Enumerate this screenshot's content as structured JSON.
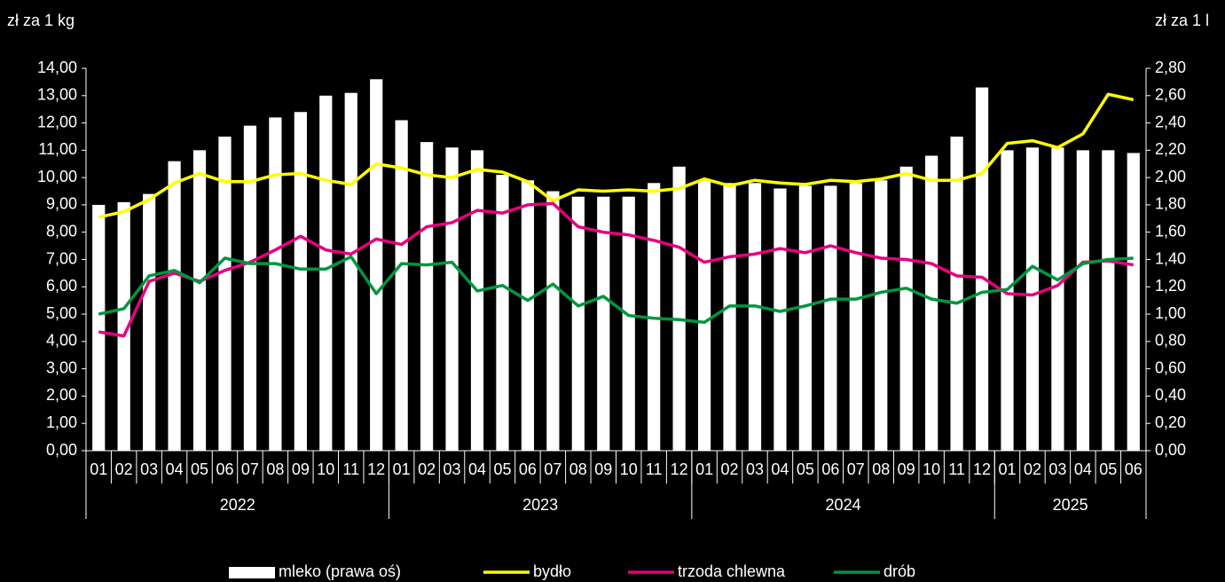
{
  "chart_data": {
    "type": "bar-line",
    "y_label": "zł za 1 kg",
    "y2_label": "zł za 1 l",
    "categories": [
      "01",
      "02",
      "03",
      "04",
      "05",
      "06",
      "07",
      "08",
      "09",
      "10",
      "11",
      "12",
      "01",
      "02",
      "03",
      "04",
      "05",
      "06",
      "07",
      "08",
      "09",
      "10",
      "11",
      "12",
      "01",
      "02",
      "03",
      "04",
      "05",
      "06",
      "07",
      "08",
      "09",
      "10",
      "11",
      "12",
      "01",
      "02",
      "03",
      "04",
      "05",
      "06"
    ],
    "groups": [
      {
        "name": "2022",
        "size": 12
      },
      {
        "name": "2023",
        "size": 12
      },
      {
        "name": "2024",
        "size": 12
      },
      {
        "name": "2025",
        "size": 6
      }
    ],
    "ylim": [
      0,
      14
    ],
    "yticks": [
      {
        "value": 0,
        "label": "0,00"
      },
      {
        "value": 1,
        "label": "1,00"
      },
      {
        "value": 2,
        "label": "2,00"
      },
      {
        "value": 3,
        "label": "3,00"
      },
      {
        "value": 4,
        "label": "4,00"
      },
      {
        "value": 5,
        "label": "5,00"
      },
      {
        "value": 6,
        "label": "6,00"
      },
      {
        "value": 7,
        "label": "7,00"
      },
      {
        "value": 8,
        "label": "8,00"
      },
      {
        "value": 9,
        "label": "9,00"
      },
      {
        "value": 10,
        "label": "10,00"
      },
      {
        "value": 11,
        "label": "11,00"
      },
      {
        "value": 12,
        "label": "12,00"
      },
      {
        "value": 13,
        "label": "13,00"
      },
      {
        "value": 14,
        "label": "14,00"
      }
    ],
    "y2lim": [
      0,
      2.8
    ],
    "y2ticks": [
      {
        "value": 0,
        "label": "0,00"
      },
      {
        "value": 0.2,
        "label": "0,20"
      },
      {
        "value": 0.4,
        "label": "0,40"
      },
      {
        "value": 0.6,
        "label": "0,60"
      },
      {
        "value": 0.8,
        "label": "0,80"
      },
      {
        "value": 1,
        "label": "1,00"
      },
      {
        "value": 1.2,
        "label": "1,20"
      },
      {
        "value": 1.4,
        "label": "1,40"
      },
      {
        "value": 1.6,
        "label": "1,60"
      },
      {
        "value": 1.8,
        "label": "1,80"
      },
      {
        "value": 2,
        "label": "2,00"
      },
      {
        "value": 2.2,
        "label": "2,20"
      },
      {
        "value": 2.4,
        "label": "2,40"
      },
      {
        "value": 2.6,
        "label": "2,60"
      },
      {
        "value": 2.8,
        "label": "2,80"
      }
    ],
    "series": [
      {
        "name": "mleko (prawa oś)",
        "type": "bar",
        "axis": "y2",
        "color": "#ffffff",
        "values": [
          1.8,
          1.82,
          1.88,
          2.12,
          2.2,
          2.3,
          2.38,
          2.44,
          2.48,
          2.6,
          2.62,
          2.72,
          2.42,
          2.26,
          2.22,
          2.2,
          2.02,
          1.98,
          1.9,
          1.86,
          1.86,
          1.86,
          1.96,
          2.08,
          1.98,
          1.96,
          1.96,
          1.92,
          1.94,
          1.94,
          1.96,
          1.98,
          2.08,
          2.16,
          2.3,
          2.66,
          2.2,
          2.22,
          2.22,
          2.2,
          2.2,
          2.18
        ]
      },
      {
        "name": "bydło",
        "type": "line",
        "color": "#ffff00",
        "values": [
          8.55,
          8.75,
          9.2,
          9.8,
          10.15,
          9.85,
          9.85,
          10.1,
          10.15,
          9.9,
          9.75,
          10.5,
          10.35,
          10.1,
          10.0,
          10.3,
          10.2,
          9.85,
          9.15,
          9.55,
          9.5,
          9.55,
          9.5,
          9.6,
          9.95,
          9.7,
          9.9,
          9.8,
          9.75,
          9.9,
          9.85,
          9.95,
          10.15,
          9.9,
          9.9,
          10.15,
          11.25,
          11.35,
          11.1,
          11.6,
          13.05,
          12.85
        ]
      },
      {
        "name": "trzoda chlewna",
        "type": "line",
        "color": "#e6007e",
        "values": [
          4.35,
          4.2,
          6.2,
          6.5,
          6.2,
          6.6,
          6.9,
          7.35,
          7.85,
          7.35,
          7.2,
          7.75,
          7.55,
          8.2,
          8.35,
          8.8,
          8.7,
          9.0,
          9.05,
          8.2,
          8.0,
          7.9,
          7.7,
          7.45,
          6.9,
          7.1,
          7.2,
          7.4,
          7.25,
          7.5,
          7.25,
          7.05,
          7.0,
          6.85,
          6.4,
          6.35,
          5.75,
          5.7,
          6.05,
          6.9,
          6.95,
          6.8
        ]
      },
      {
        "name": "drób",
        "type": "line",
        "color": "#00963f",
        "values": [
          5.0,
          5.2,
          6.4,
          6.6,
          6.15,
          7.05,
          6.85,
          6.85,
          6.65,
          6.65,
          7.1,
          5.75,
          6.85,
          6.8,
          6.9,
          5.85,
          6.05,
          5.5,
          6.1,
          5.3,
          5.65,
          4.95,
          4.85,
          4.8,
          4.7,
          5.3,
          5.3,
          5.1,
          5.3,
          5.55,
          5.55,
          5.8,
          5.95,
          5.55,
          5.4,
          5.8,
          5.9,
          6.75,
          6.25,
          6.85,
          7.0,
          7.05
        ]
      }
    ]
  }
}
